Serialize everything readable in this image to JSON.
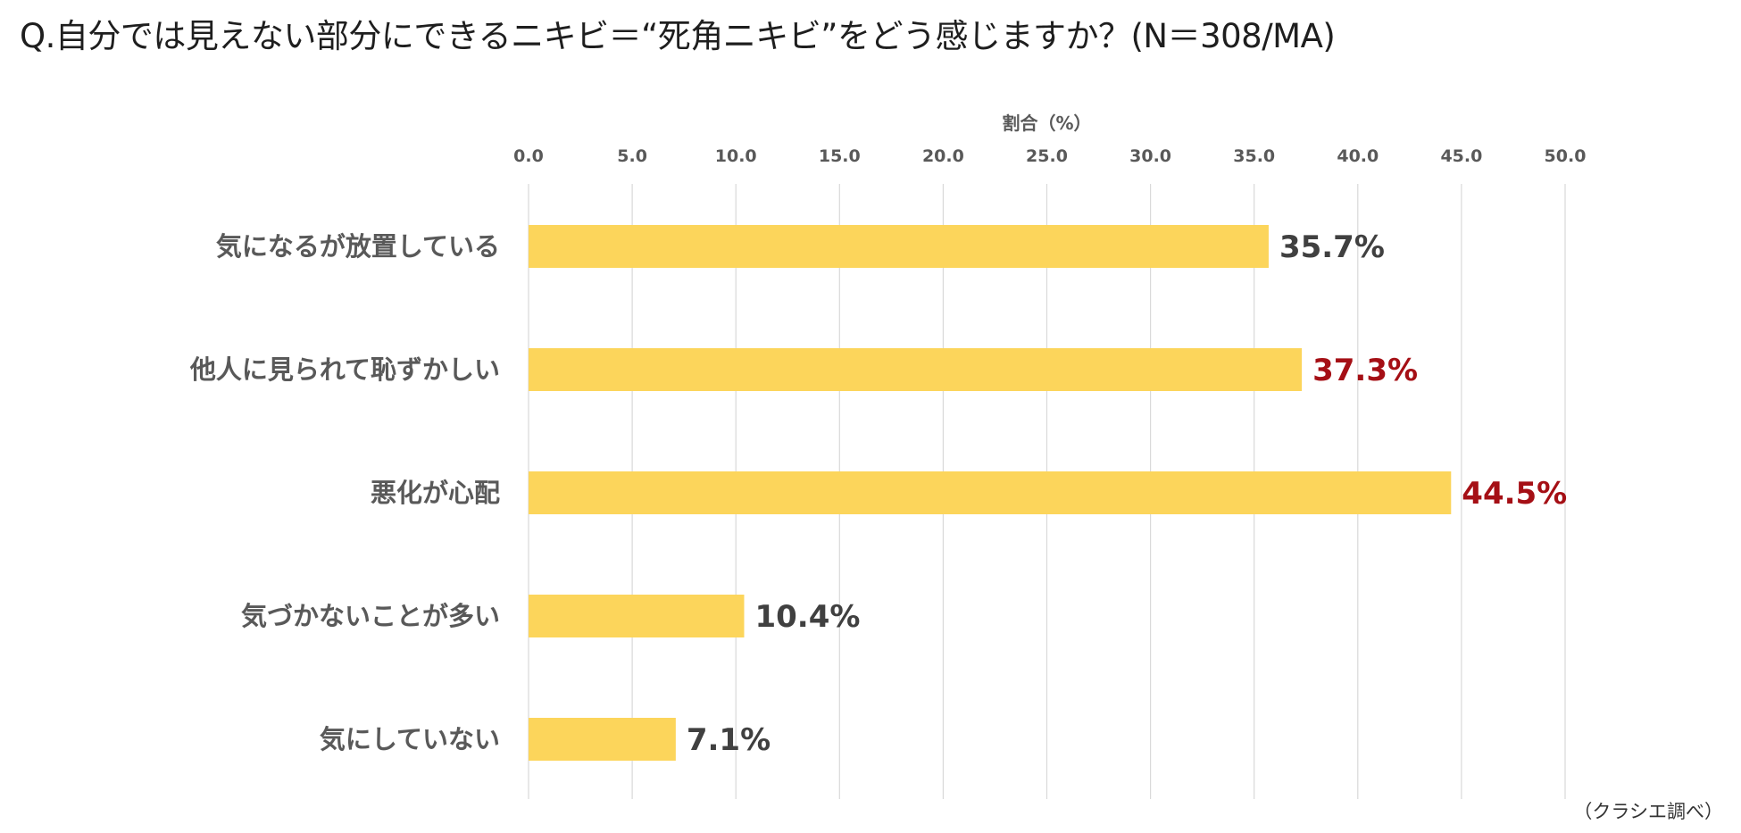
{
  "title": "Q.自分では見えない部分にできるニキビ＝“死角ニキビ”をどう感じますか？(N＝308/MA)",
  "source": "（クラシエ調べ）",
  "chart_data": {
    "type": "bar",
    "orientation": "horizontal",
    "xlabel": "割合（%）",
    "ylabel": "",
    "xlim": [
      0,
      50
    ],
    "ticks": [
      "0.0",
      "5.0",
      "10.0",
      "15.0",
      "20.0",
      "25.0",
      "30.0",
      "35.0",
      "40.0",
      "45.0",
      "50.0"
    ],
    "tick_values": [
      0,
      5,
      10,
      15,
      20,
      25,
      30,
      35,
      40,
      45,
      50
    ],
    "axis_position": "top",
    "grid": true,
    "categories": [
      "気になるが放置している",
      "他人に見られて恥ずかしい",
      "悪化が心配",
      "気づかないことが多い",
      "気にしていない"
    ],
    "values": [
      35.7,
      37.3,
      44.5,
      10.4,
      7.1
    ],
    "data_labels": [
      "35.7%",
      "37.3%",
      "44.5%",
      "10.4%",
      "7.1%"
    ],
    "highlighted": [
      false,
      true,
      true,
      false,
      false
    ],
    "colors": {
      "bar": "#FCD55B",
      "label_default": "#404040",
      "label_highlight": "#A50F15",
      "grid": "#D9D9D9",
      "category_text": "#595959"
    }
  }
}
